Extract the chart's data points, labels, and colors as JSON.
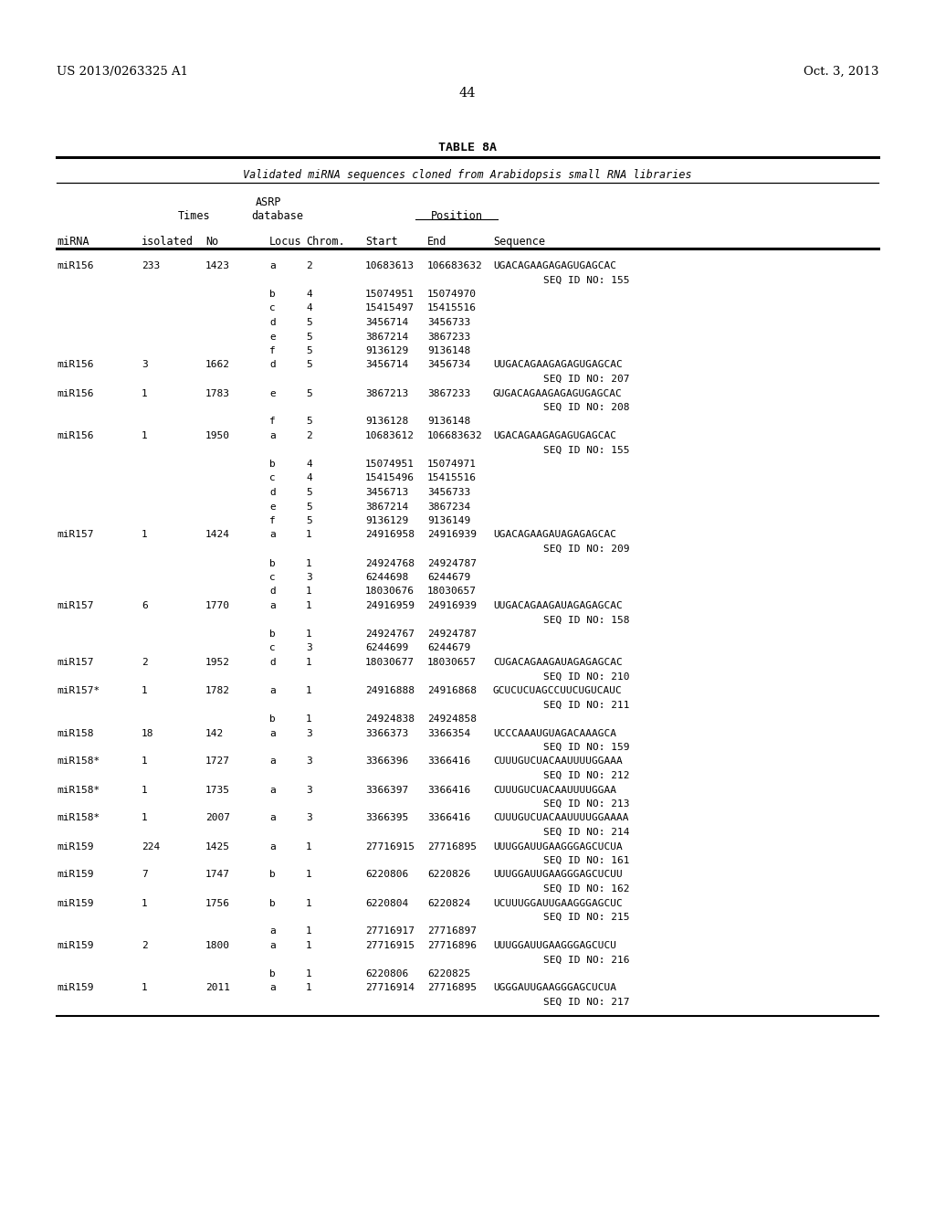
{
  "patent_number": "US 2013/0263325 A1",
  "patent_date": "Oct. 3, 2013",
  "page_number": "44",
  "table_title": "TABLE 8A",
  "table_subtitle": "Validated miRNA sequences cloned from Arabidopsis small RNA libraries",
  "rows": [
    [
      "miR156",
      "233",
      "1423",
      "a",
      "2",
      "10683613",
      "106683632",
      "UGACAGAAGAGAGUGAGCAC"
    ],
    [
      "",
      "",
      "",
      "",
      "",
      "",
      "",
      "SEQ ID NO: 155"
    ],
    [
      "",
      "",
      "",
      "b",
      "4",
      "15074951",
      "15074970",
      ""
    ],
    [
      "",
      "",
      "",
      "c",
      "4",
      "15415497",
      "15415516",
      ""
    ],
    [
      "",
      "",
      "",
      "d",
      "5",
      "3456714",
      "3456733",
      ""
    ],
    [
      "",
      "",
      "",
      "e",
      "5",
      "3867214",
      "3867233",
      ""
    ],
    [
      "",
      "",
      "",
      "f",
      "5",
      "9136129",
      "9136148",
      ""
    ],
    [
      "miR156",
      "3",
      "1662",
      "d",
      "5",
      "3456714",
      "3456734",
      "UUGACAGAAGAGAGUGAGCAC"
    ],
    [
      "",
      "",
      "",
      "",
      "",
      "",
      "",
      "SEQ ID NO: 207"
    ],
    [
      "miR156",
      "1",
      "1783",
      "e",
      "5",
      "3867213",
      "3867233",
      "GUGACAGAAGAGAGUGAGCAC"
    ],
    [
      "",
      "",
      "",
      "",
      "",
      "",
      "",
      "SEQ ID NO: 208"
    ],
    [
      "",
      "",
      "",
      "f",
      "5",
      "9136128",
      "9136148",
      ""
    ],
    [
      "miR156",
      "1",
      "1950",
      "a",
      "2",
      "10683612",
      "106683632",
      "UGACAGAAGAGAGUGAGCAC"
    ],
    [
      "",
      "",
      "",
      "",
      "",
      "",
      "",
      "SEQ ID NO: 155"
    ],
    [
      "",
      "",
      "",
      "b",
      "4",
      "15074951",
      "15074971",
      ""
    ],
    [
      "",
      "",
      "",
      "c",
      "4",
      "15415496",
      "15415516",
      ""
    ],
    [
      "",
      "",
      "",
      "d",
      "5",
      "3456713",
      "3456733",
      ""
    ],
    [
      "",
      "",
      "",
      "e",
      "5",
      "3867214",
      "3867234",
      ""
    ],
    [
      "",
      "",
      "",
      "f",
      "5",
      "9136129",
      "9136149",
      ""
    ],
    [
      "miR157",
      "1",
      "1424",
      "a",
      "1",
      "24916958",
      "24916939",
      "UGACAGAAGAUAGAGAGCAC"
    ],
    [
      "",
      "",
      "",
      "",
      "",
      "",
      "",
      "SEQ ID NO: 209"
    ],
    [
      "",
      "",
      "",
      "b",
      "1",
      "24924768",
      "24924787",
      ""
    ],
    [
      "",
      "",
      "",
      "c",
      "3",
      "6244698",
      "6244679",
      ""
    ],
    [
      "",
      "",
      "",
      "d",
      "1",
      "18030676",
      "18030657",
      ""
    ],
    [
      "miR157",
      "6",
      "1770",
      "a",
      "1",
      "24916959",
      "24916939",
      "UUGACAGAAGAUAGAGAGCAC"
    ],
    [
      "",
      "",
      "",
      "",
      "",
      "",
      "",
      "SEQ ID NO: 158"
    ],
    [
      "",
      "",
      "",
      "b",
      "1",
      "24924767",
      "24924787",
      ""
    ],
    [
      "",
      "",
      "",
      "c",
      "3",
      "6244699",
      "6244679",
      ""
    ],
    [
      "miR157",
      "2",
      "1952",
      "d",
      "1",
      "18030677",
      "18030657",
      "CUGACAGAAGAUAGAGAGCAC"
    ],
    [
      "",
      "",
      "",
      "",
      "",
      "",
      "",
      "SEQ ID NO: 210"
    ],
    [
      "miR157*",
      "1",
      "1782",
      "a",
      "1",
      "24916888",
      "24916868",
      "GCUCUCUAGCCUUCUGUCAUC"
    ],
    [
      "",
      "",
      "",
      "",
      "",
      "",
      "",
      "SEQ ID NO: 211"
    ],
    [
      "",
      "",
      "",
      "b",
      "1",
      "24924838",
      "24924858",
      ""
    ],
    [
      "miR158",
      "18",
      "142",
      "a",
      "3",
      "3366373",
      "3366354",
      "UCCCAAAUGUAGACAAAGCA"
    ],
    [
      "",
      "",
      "",
      "",
      "",
      "",
      "",
      "SEQ ID NO: 159"
    ],
    [
      "miR158*",
      "1",
      "1727",
      "a",
      "3",
      "3366396",
      "3366416",
      "CUUUGUCUACAAUUUUGGAAA"
    ],
    [
      "",
      "",
      "",
      "",
      "",
      "",
      "",
      "SEQ ID NO: 212"
    ],
    [
      "miR158*",
      "1",
      "1735",
      "a",
      "3",
      "3366397",
      "3366416",
      "CUUUGUCUACAAUUUUGGAA"
    ],
    [
      "",
      "",
      "",
      "",
      "",
      "",
      "",
      "SEQ ID NO: 213"
    ],
    [
      "miR158*",
      "1",
      "2007",
      "a",
      "3",
      "3366395",
      "3366416",
      "CUUUGUCUACAAUUUUGGAAAA"
    ],
    [
      "",
      "",
      "",
      "",
      "",
      "",
      "",
      "SEQ ID NO: 214"
    ],
    [
      "miR159",
      "224",
      "1425",
      "a",
      "1",
      "27716915",
      "27716895",
      "UUUGGAUUGAAGGGAGCUCUA"
    ],
    [
      "",
      "",
      "",
      "",
      "",
      "",
      "",
      "SEQ ID NO: 161"
    ],
    [
      "miR159",
      "7",
      "1747",
      "b",
      "1",
      "6220806",
      "6220826",
      "UUUGGAUUGAAGGGAGCUCUU"
    ],
    [
      "",
      "",
      "",
      "",
      "",
      "",
      "",
      "SEQ ID NO: 162"
    ],
    [
      "miR159",
      "1",
      "1756",
      "b",
      "1",
      "6220804",
      "6220824",
      "UCUUUGGAUUGAAGGGAGCUC"
    ],
    [
      "",
      "",
      "",
      "",
      "",
      "",
      "",
      "SEQ ID NO: 215"
    ],
    [
      "",
      "",
      "",
      "a",
      "1",
      "27716917",
      "27716897",
      ""
    ],
    [
      "miR159",
      "2",
      "1800",
      "a",
      "1",
      "27716915",
      "27716896",
      "UUUGGAUUGAAGGGAGCUCU"
    ],
    [
      "",
      "",
      "",
      "",
      "",
      "",
      "",
      "SEQ ID NO: 216"
    ],
    [
      "",
      "",
      "",
      "b",
      "1",
      "6220806",
      "6220825",
      ""
    ],
    [
      "miR159",
      "1",
      "2011",
      "a",
      "1",
      "27716914",
      "27716895",
      "UGGGAUUGAAGGGAGCUCUA"
    ],
    [
      "",
      "",
      "",
      "",
      "",
      "",
      "",
      "SEQ ID NO: 217"
    ]
  ],
  "bg_color": "#ffffff",
  "text_color": "#000000",
  "font_size_header": 9.5,
  "font_size_body": 8.0,
  "font_size_page_num": 10.5
}
